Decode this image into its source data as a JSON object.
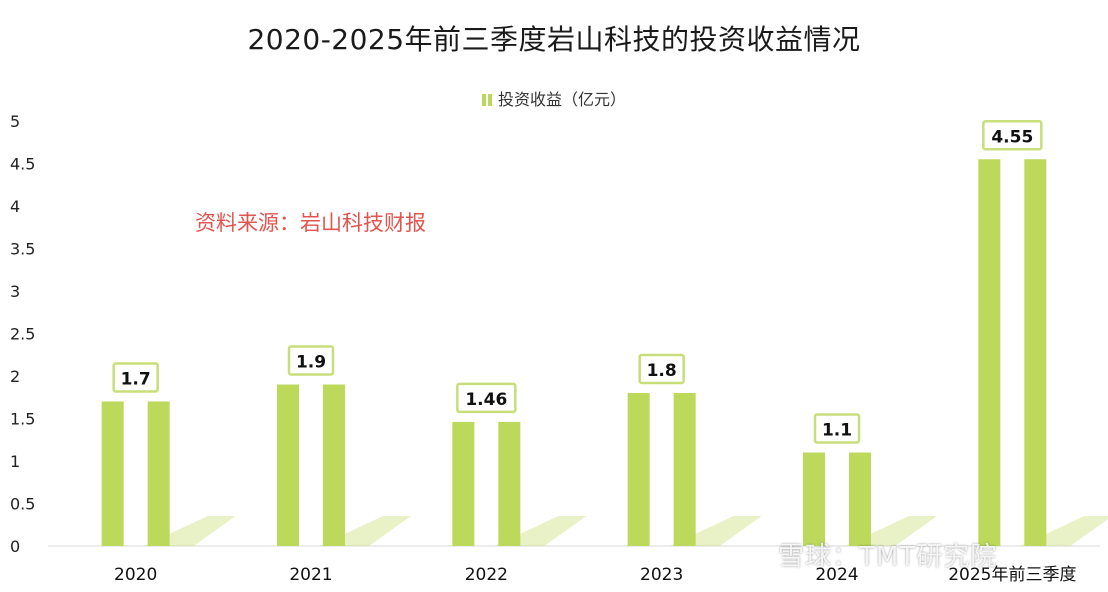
{
  "chart_data": {
    "type": "bar",
    "title": "2020-2025年前三季度岩山科技的投资收益情况",
    "legend": "投资收益（亿元）",
    "annotation": "资料来源：岩山科技财报",
    "categories": [
      "2020",
      "2021",
      "2022",
      "2023",
      "2024",
      "2025年前三季度"
    ],
    "series": [
      {
        "name": "投资收益（亿元）",
        "values": [
          1.7,
          1.9,
          1.46,
          1.8,
          1.1,
          4.55
        ]
      }
    ],
    "data_labels": [
      "1.7",
      "1.9",
      "1.46",
      "1.8",
      "1.1",
      "4.55"
    ],
    "yticks": [
      "0",
      "0.5",
      "1",
      "1.5",
      "2",
      "2.5",
      "3",
      "3.5",
      "4",
      "4.5",
      "5"
    ],
    "ylim": [
      0,
      5
    ],
    "grid": false,
    "legend_position": "top",
    "colors": {
      "bar": "#bcd95c",
      "label_border": "#c8de7a",
      "source_text": "#e2554e"
    }
  },
  "watermark": "雪球：TMT研究院"
}
